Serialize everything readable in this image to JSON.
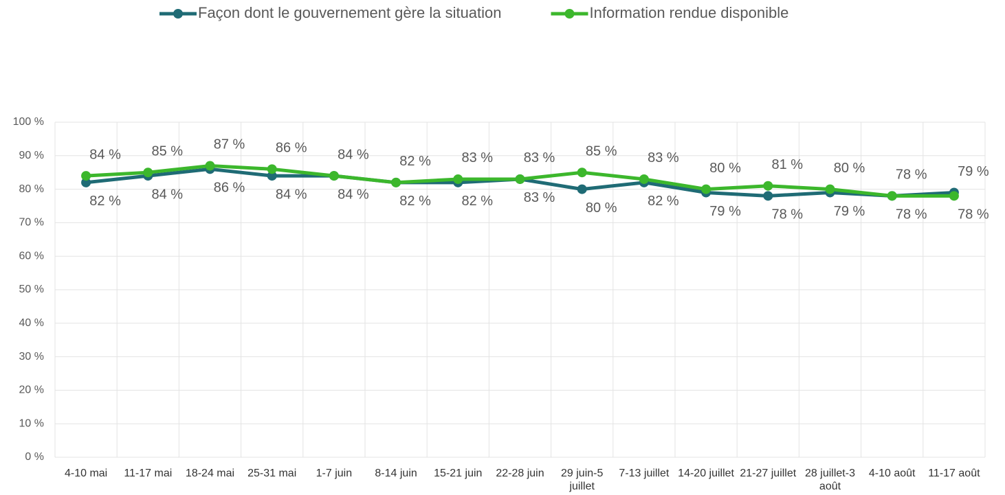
{
  "chart_data": {
    "type": "line",
    "categories": [
      "4-10 mai",
      "11-17 mai",
      "18-24 mai",
      "25-31 mai",
      "1-7 juin",
      "8-14 juin",
      "15-21 juin",
      "22-28 juin",
      "29 juin-5 juillet",
      "7-13 juillet",
      "14-20 juillet",
      "21-27 juillet",
      "28 juillet-3 août",
      "4-10 août",
      "11-17 août"
    ],
    "series": [
      {
        "name": "Façon dont le gouvernement gère la situation",
        "color": "#1f6b75",
        "values": [
          82,
          84,
          86,
          84,
          84,
          82,
          82,
          83,
          80,
          82,
          79,
          78,
          79,
          78,
          79
        ],
        "value_labels": [
          "82 %",
          "84 %",
          "86 %",
          "84 %",
          "84 %",
          "82 %",
          "82 %",
          "83 %",
          "80 %",
          "82 %",
          "79 %",
          "78 %",
          "79 %",
          "78 %",
          "79 %"
        ]
      },
      {
        "name": "Information rendue disponible",
        "color": "#3cb72c",
        "values": [
          84,
          85,
          87,
          86,
          84,
          82,
          83,
          83,
          85,
          83,
          80,
          81,
          80,
          78,
          78
        ],
        "value_labels": [
          "84 %",
          "85 %",
          "87 %",
          "86 %",
          "84 %",
          "82 %",
          "83 %",
          "83 %",
          "85 %",
          "83 %",
          "80 %",
          "81 %",
          "80 %",
          "78 %",
          "78 %"
        ]
      }
    ],
    "ylim": [
      0,
      100
    ],
    "yticks": [
      {
        "value": 0,
        "label": "0 %"
      },
      {
        "value": 10,
        "label": "10 %"
      },
      {
        "value": 20,
        "label": "20 %"
      },
      {
        "value": 30,
        "label": "30 %"
      },
      {
        "value": 40,
        "label": "40 %"
      },
      {
        "value": 50,
        "label": "50 %"
      },
      {
        "value": 60,
        "label": "60 %"
      },
      {
        "value": 70,
        "label": "70 %"
      },
      {
        "value": 80,
        "label": "80 %"
      },
      {
        "value": 90,
        "label": "90 %"
      },
      {
        "value": 100,
        "label": "100 %"
      }
    ],
    "grid": true,
    "legend": "top"
  }
}
